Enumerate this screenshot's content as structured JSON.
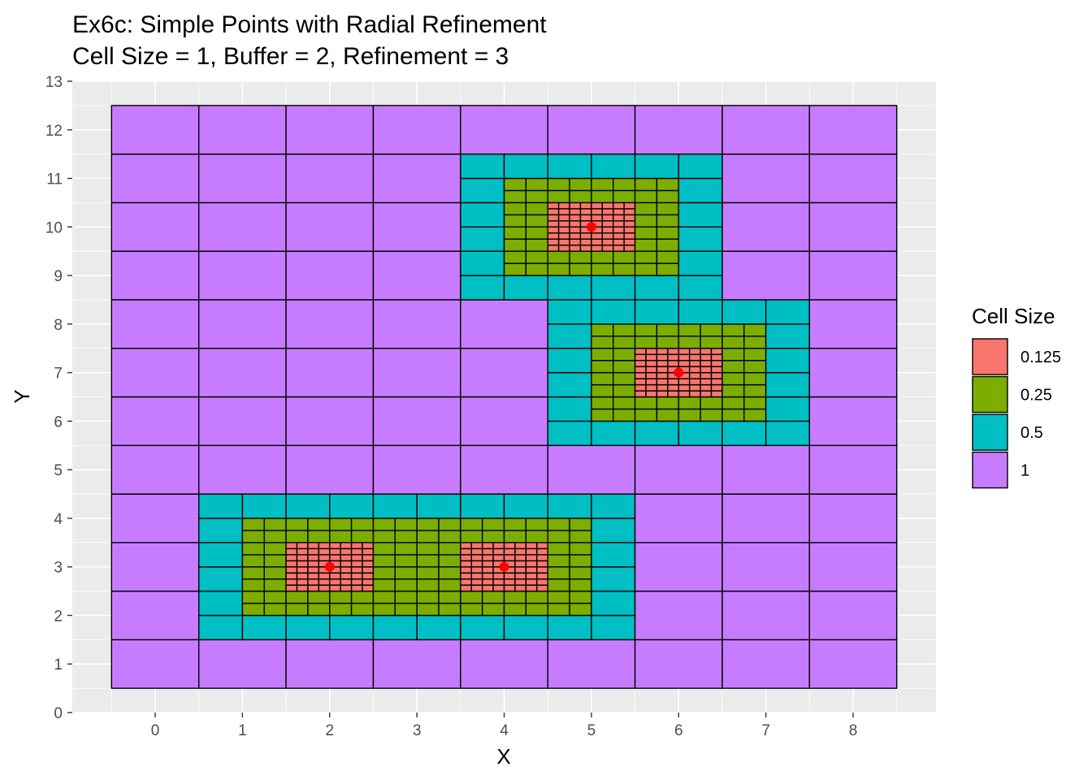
{
  "chart_data": {
    "type": "tile",
    "title": "Ex6c: Simple Points with Radial Refinement",
    "subtitle": "Cell Size = 1, Buffer = 2, Refinement = 3",
    "xlabel": "X",
    "ylabel": "Y",
    "xlim": [
      -0.95,
      8.95
    ],
    "ylim": [
      0,
      13
    ],
    "xticks": [
      0,
      1,
      2,
      3,
      4,
      5,
      6,
      7,
      8
    ],
    "yticks": [
      0,
      1,
      2,
      3,
      4,
      5,
      6,
      7,
      8,
      9,
      10,
      11,
      12,
      13
    ],
    "legend": {
      "title": "Cell Size",
      "position": "right",
      "entries": [
        {
          "label": "0.125",
          "size": 0.125,
          "color": "#F8766D"
        },
        {
          "label": "0.25",
          "size": 0.25,
          "color": "#7CAE00"
        },
        {
          "label": "0.5",
          "size": 0.5,
          "color": "#00BFC4"
        },
        {
          "label": "1",
          "size": 1,
          "color": "#C77CFF"
        }
      ]
    },
    "base_grid": {
      "x_min": -0.5,
      "x_max": 8.5,
      "y_min": 0.5,
      "y_max": 12.5,
      "cell_size": 1
    },
    "regions": [
      {
        "size": 0.5,
        "x0": 3.5,
        "x1": 6.5,
        "y0": 8.5,
        "y1": 11.5
      },
      {
        "size": 0.25,
        "x0": 4,
        "x1": 6,
        "y0": 9,
        "y1": 11
      },
      {
        "size": 0.125,
        "x0": 4.5,
        "x1": 5.5,
        "y0": 9.5,
        "y1": 10.5
      },
      {
        "size": 0.5,
        "x0": 4.5,
        "x1": 7.5,
        "y0": 5.5,
        "y1": 8.5
      },
      {
        "size": 0.25,
        "x0": 5,
        "x1": 7,
        "y0": 6,
        "y1": 8
      },
      {
        "size": 0.125,
        "x0": 5.5,
        "x1": 6.5,
        "y0": 6.5,
        "y1": 7.5
      },
      {
        "size": 0.5,
        "x0": 0.5,
        "x1": 5.5,
        "y0": 1.5,
        "y1": 4.5
      },
      {
        "size": 0.25,
        "x0": 1,
        "x1": 5,
        "y0": 2,
        "y1": 4
      },
      {
        "size": 0.125,
        "x0": 1.5,
        "x1": 2.5,
        "y0": 2.5,
        "y1": 3.5
      },
      {
        "size": 0.125,
        "x0": 3.5,
        "x1": 4.5,
        "y0": 2.5,
        "y1": 3.5
      }
    ],
    "points": [
      {
        "x": 5,
        "y": 10
      },
      {
        "x": 6,
        "y": 7
      },
      {
        "x": 2,
        "y": 3
      },
      {
        "x": 4,
        "y": 3
      }
    ],
    "point_color": "#FF0000",
    "panel_background": "#EBEBEB",
    "cell_border": "#000000"
  }
}
